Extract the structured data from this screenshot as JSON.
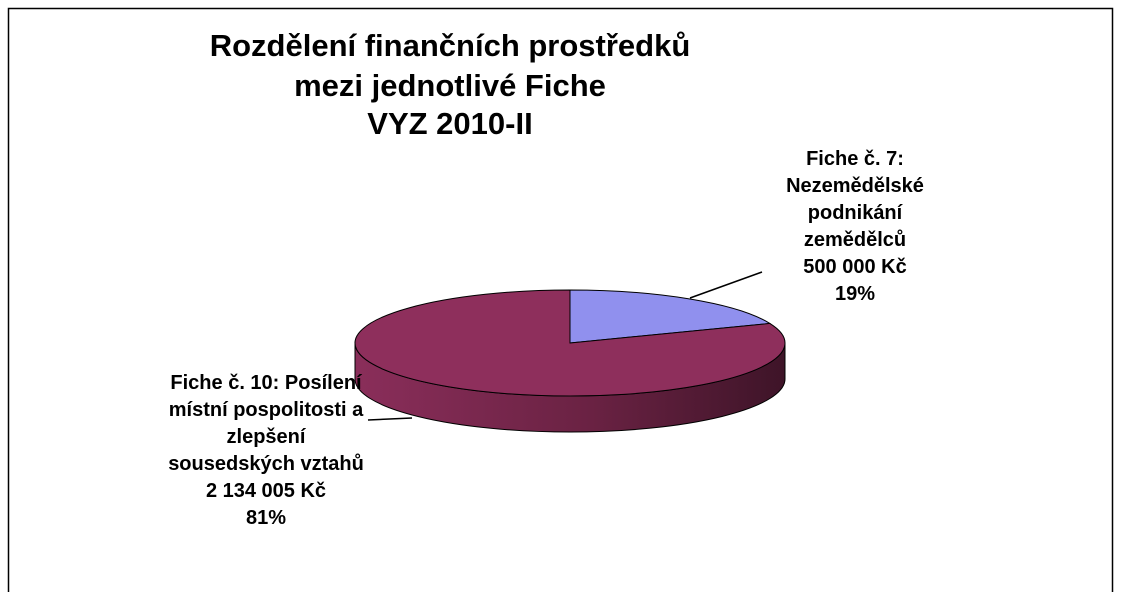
{
  "chart_data": {
    "type": "pie",
    "title": [
      "Rozdělení finančních prostředků",
      "mezi jednotlivé Fiche",
      "VYZ 2010-II"
    ],
    "categories": [
      "Fiche č. 7: Nezemědělské podnikání zemědělců",
      "Fiche č. 10: Posílení místní pospolitosti a zlepšení sousedských vztahů"
    ],
    "values": [
      500000,
      2134005
    ],
    "value_labels": [
      "500 000 Kč",
      "2 134 005 Kč"
    ],
    "percentages": [
      19,
      81
    ],
    "percentage_labels": [
      "19%",
      "81%"
    ],
    "colors": [
      "#9090ee",
      "#8e2f5c"
    ]
  }
}
